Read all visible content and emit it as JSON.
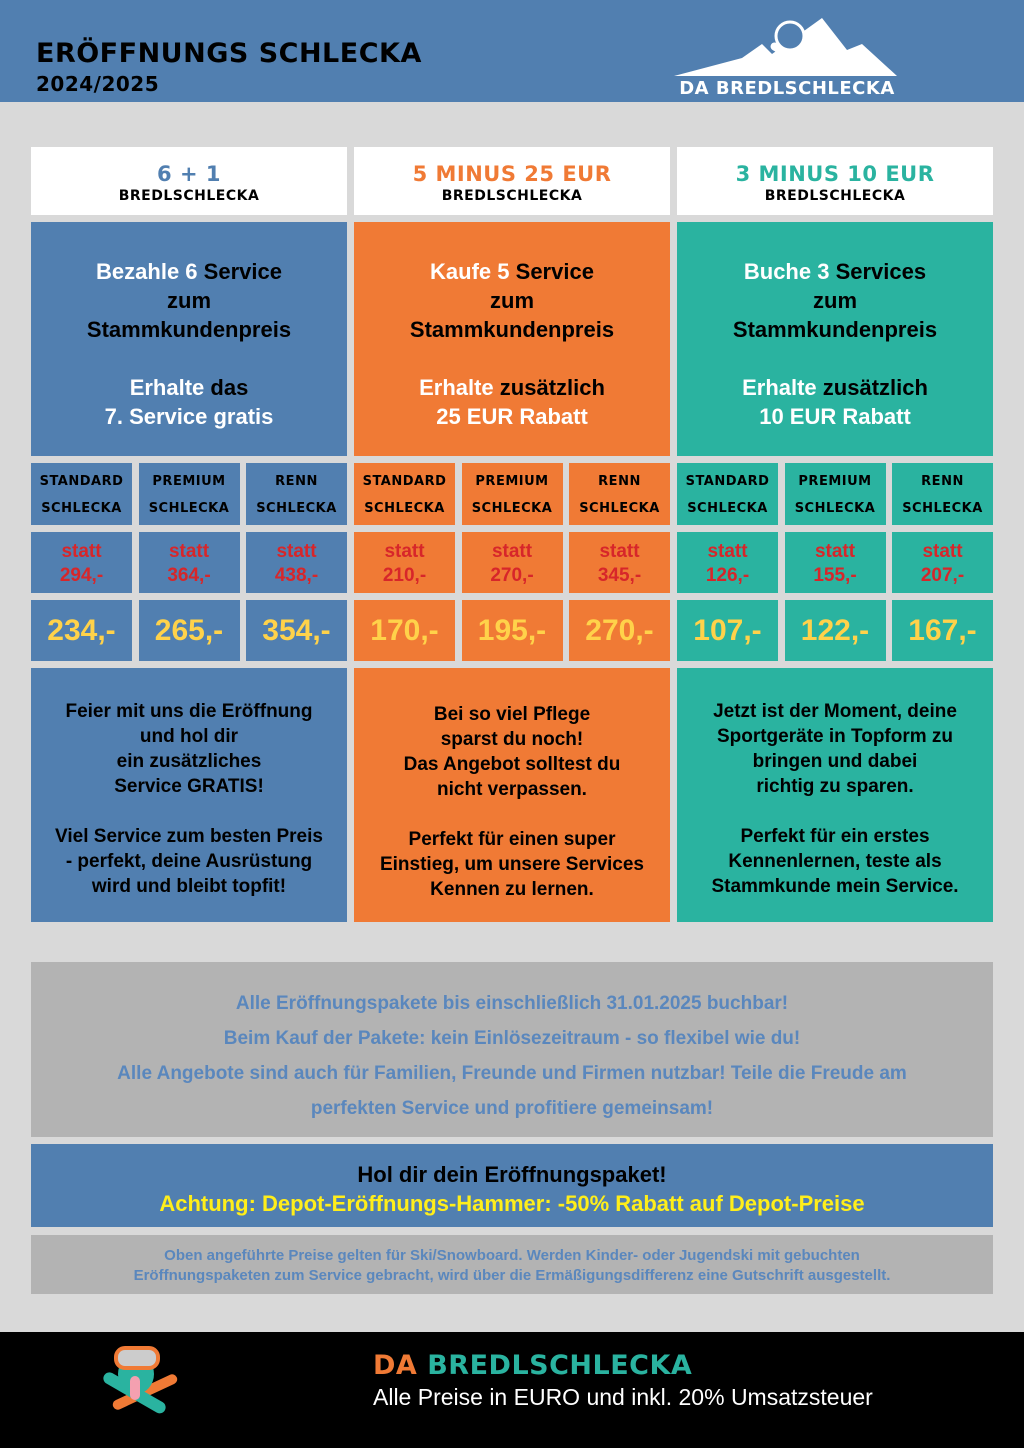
{
  "colors": {
    "blue": "#517fb0",
    "orange": "#f07a35",
    "teal": "#2ab3a0",
    "yellow": "#ffd24a",
    "red": "#d7262a",
    "gray": "#b3b3b3",
    "background": "#d9d9d9"
  },
  "header": {
    "title": "ERÖFFNUNGS SCHLECKA",
    "year": "2024/2025",
    "logo_text": "DA BREDLSCHLECKA"
  },
  "packages": [
    {
      "title": "6 + 1",
      "subtitle": "BREDLSCHLECKA",
      "color": "#517fb0",
      "promo": {
        "l1a": "Bezahle 6 ",
        "l1b": "Service",
        "l2": "zum",
        "l3": "Stammkundenpreis",
        "l4a": "Erhalte ",
        "l4b": "das",
        "l5": "7. Service gratis"
      },
      "tiers": [
        {
          "l1": "STANDARD",
          "l2": "SCHLECKA",
          "statt": "statt",
          "old": "294,-",
          "price": "234,-"
        },
        {
          "l1": "PREMIUM",
          "l2": "SCHLECKA",
          "statt": "statt",
          "old": "364,-",
          "price": "265,-"
        },
        {
          "l1": "RENN",
          "l2": "SCHLECKA",
          "statt": "statt",
          "old": "438,-",
          "price": "354,-"
        }
      ],
      "desc": [
        "Feier mit uns die Eröffnung",
        "und hol dir",
        "ein zusätzliches",
        "Service GRATIS!",
        "",
        "Viel Service zum besten Preis",
        "- perfekt, deine Ausrüstung",
        "wird und bleibt topfit!"
      ]
    },
    {
      "title": "5 MINUS 25 EUR",
      "subtitle": "BREDLSCHLECKA",
      "color": "#f07a35",
      "promo": {
        "l1a": "Kaufe 5 ",
        "l1b": "Service",
        "l2": "zum",
        "l3": "Stammkundenpreis",
        "l4a": "Erhalte ",
        "l4b": "zusätzlich",
        "l5": "25 EUR Rabatt"
      },
      "tiers": [
        {
          "l1": "STANDARD",
          "l2": "SCHLECKA",
          "statt": "statt",
          "old": "210,-",
          "price": "170,-"
        },
        {
          "l1": "PREMIUM",
          "l2": "SCHLECKA",
          "statt": "statt",
          "old": "270,-",
          "price": "195,-"
        },
        {
          "l1": "RENN",
          "l2": "SCHLECKA",
          "statt": "statt",
          "old": "345,-",
          "price": "270,-"
        }
      ],
      "desc": [
        "Bei so viel Pflege",
        "sparst du noch!",
        "Das Angebot solltest du",
        "nicht verpassen.",
        "",
        "Perfekt für einen super",
        "Einstieg, um unsere Services",
        "Kennen zu lernen."
      ]
    },
    {
      "title": "3 MINUS 10 EUR",
      "subtitle": "BREDLSCHLECKA",
      "color": "#2ab3a0",
      "promo": {
        "l1a": "Buche 3 ",
        "l1b": "Services",
        "l2": "zum",
        "l3": "Stammkundenpreis",
        "l4a": "Erhalte ",
        "l4b": "zusätzlich",
        "l5": "10 EUR Rabatt"
      },
      "tiers": [
        {
          "l1": "STANDARD",
          "l2": "SCHLECKA",
          "statt": "statt",
          "old": "126,-",
          "price": "107,-"
        },
        {
          "l1": "PREMIUM",
          "l2": "SCHLECKA",
          "statt": "statt",
          "old": "155,-",
          "price": "122,-"
        },
        {
          "l1": "RENN",
          "l2": "SCHLECKA",
          "statt": "statt",
          "old": "207,-",
          "price": "167,-"
        }
      ],
      "desc": [
        "Jetzt ist der Moment, deine",
        "Sportgeräte in Topform zu",
        "bringen und dabei",
        "richtig zu sparen.",
        "",
        "Perfekt für ein erstes",
        "Kennenlernen, teste als",
        "Stammkunde mein Service."
      ]
    }
  ],
  "info": [
    "Alle Eröffnungspakete bis einschließlich 31.01.2025 buchbar!",
    "Beim Kauf der Pakete: kein Einlösezeitraum - so flexibel wie du!",
    "Alle Angebote sind auch für Familien, Freunde und Firmen nutzbar! Teile die Freude am",
    "perfekten Service und profitiere gemeinsam!"
  ],
  "banner": {
    "line1": "Hol dir dein Eröffnungspaket!",
    "line2": "Achtung: Depot-Eröffnungs-Hammer: -50% Rabatt auf Depot-Preise"
  },
  "note": [
    "Oben angeführte Preise gelten für Ski/Snowboard. Werden Kinder- oder Jugendski mit gebuchten",
    "Eröffnungspaketen zum Service gebracht, wird über die Ermäßigungsdifferenz eine Gutschrift ausgestellt."
  ],
  "footer": {
    "brand_a": "DA ",
    "brand_b": "BREDLSCHLECKA",
    "tagline": "Alle Preise in EURO und inkl. 20% Umsatzsteuer"
  }
}
